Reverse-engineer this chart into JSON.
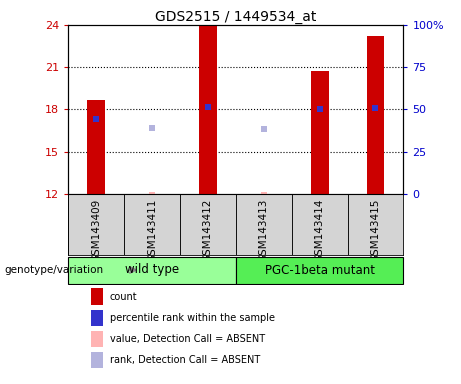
{
  "title": "GDS2515 / 1449534_at",
  "samples": [
    "GSM143409",
    "GSM143411",
    "GSM143412",
    "GSM143413",
    "GSM143414",
    "GSM143415"
  ],
  "red_bar_values": [
    18.65,
    null,
    23.9,
    null,
    20.7,
    23.2
  ],
  "red_absent_values": [
    null,
    12.15,
    null,
    12.15,
    null,
    null
  ],
  "blue_marker_values": [
    17.35,
    null,
    18.2,
    null,
    18.0,
    18.1
  ],
  "blue_absent_values": [
    null,
    16.7,
    null,
    16.6,
    null,
    null
  ],
  "ylim": [
    12,
    24
  ],
  "yticks_left": [
    12,
    15,
    18,
    21,
    24
  ],
  "ytick_right_labels": [
    "0",
    "25",
    "50",
    "75",
    "100%"
  ],
  "wild_type_label": "wild type",
  "mutant_label": "PGC-1beta mutant",
  "genotype_label": "genotype/variation",
  "legend_labels": [
    "count",
    "percentile rank within the sample",
    "value, Detection Call = ABSENT",
    "rank, Detection Call = ABSENT"
  ],
  "bar_color": "#cc0000",
  "blue_color": "#3333cc",
  "pink_color": "#ffb3b3",
  "lavender_color": "#b3b3dd",
  "background_color": "#ffffff",
  "tick_color_left": "#cc0000",
  "tick_color_right": "#0000cc",
  "bar_width": 0.32,
  "dotted_lines": [
    15,
    18,
    21
  ],
  "green_light": "#99ff99",
  "green_dark": "#55ee55",
  "gray_box": "#d4d4d4",
  "gray_box_dark": "#cccccc"
}
